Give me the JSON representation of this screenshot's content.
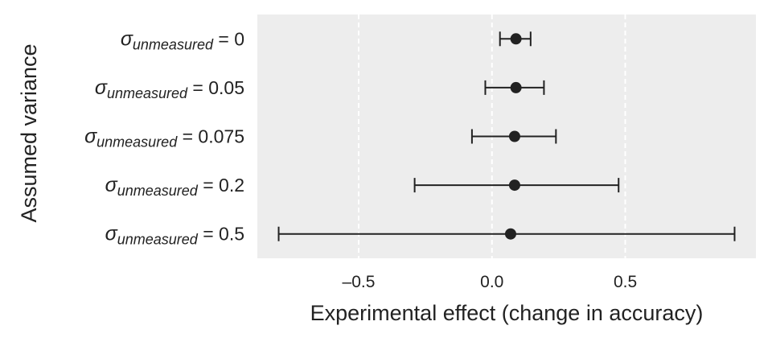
{
  "chart_data": {
    "type": "errorbar",
    "title": "",
    "xlabel": "Experimental effect (change in accuracy)",
    "ylabel": "Assumed variance",
    "xlim": [
      -0.88,
      0.99
    ],
    "xticks": [
      -0.5,
      0.0,
      0.5
    ],
    "xtick_labels": [
      "–0.5",
      "0.0",
      "0.5"
    ],
    "grid": true,
    "grid_style": "dashed vertical",
    "colors": {
      "background": "#ededed",
      "grid": "#ffffff",
      "marks": "#222222"
    },
    "categories": [
      {
        "symbol": "σ",
        "subscript": "unmeasured",
        "value_text": " = 0",
        "mean": 0.09,
        "lower": 0.03,
        "upper": 0.145
      },
      {
        "symbol": "σ",
        "subscript": "unmeasured",
        "value_text": " = 0.05",
        "mean": 0.09,
        "lower": -0.025,
        "upper": 0.195
      },
      {
        "symbol": "σ",
        "subscript": "unmeasured",
        "value_text": " = 0.075",
        "mean": 0.085,
        "lower": -0.075,
        "upper": 0.24
      },
      {
        "symbol": "σ",
        "subscript": "unmeasured",
        "value_text": " = 0.2",
        "mean": 0.085,
        "lower": -0.29,
        "upper": 0.475
      },
      {
        "symbol": "σ",
        "subscript": "unmeasured",
        "value_text": " = 0.5",
        "mean": 0.07,
        "lower": -0.8,
        "upper": 0.91
      }
    ]
  }
}
